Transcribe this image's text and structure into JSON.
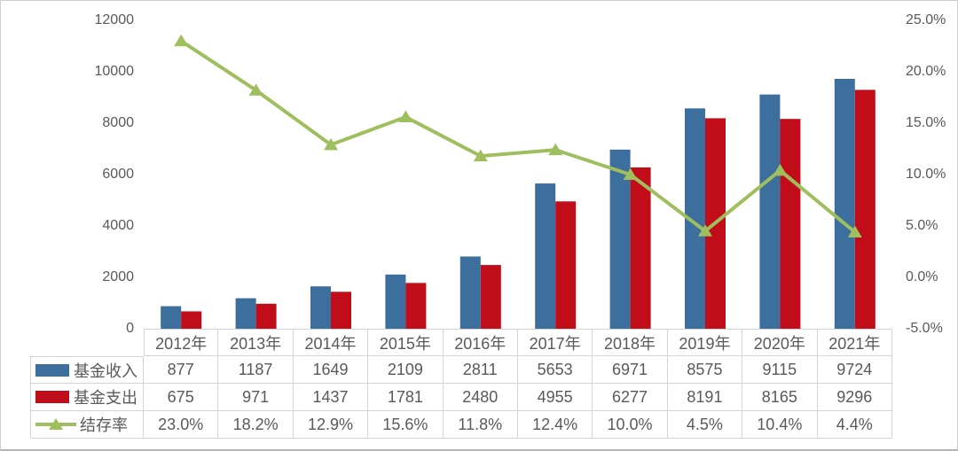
{
  "chart_data": {
    "type": "bar+line combo with data table",
    "categories": [
      "2012年",
      "2013年",
      "2014年",
      "2015年",
      "2016年",
      "2017年",
      "2018年",
      "2019年",
      "2020年",
      "2021年"
    ],
    "series": [
      {
        "name": "基金收入",
        "type": "bar",
        "axis": "left",
        "color": "#3C6E9E",
        "values": [
          877,
          1187,
          1649,
          2109,
          2811,
          5653,
          6971,
          8575,
          9115,
          9724
        ]
      },
      {
        "name": "基金支出",
        "type": "bar",
        "axis": "left",
        "color": "#C00D19",
        "values": [
          675,
          971,
          1437,
          1781,
          2480,
          4955,
          6277,
          8191,
          8165,
          9296
        ]
      },
      {
        "name": "结存率",
        "type": "line",
        "axis": "right",
        "color": "#9FBE5E",
        "marker": "triangle-up",
        "values": [
          23.0,
          18.2,
          12.9,
          15.6,
          11.8,
          12.4,
          10.0,
          4.5,
          10.4,
          4.4
        ],
        "labels": [
          "23.0%",
          "18.2%",
          "12.9%",
          "15.6%",
          "11.8%",
          "12.4%",
          "10.0%",
          "4.5%",
          "10.4%",
          "4.4%"
        ]
      }
    ],
    "left_axis": {
      "min": 0,
      "max": 12000,
      "step": 2000,
      "tick_values": [
        0,
        2000,
        4000,
        6000,
        8000,
        10000,
        12000
      ],
      "tick_labels": [
        "0",
        "2000",
        "4000",
        "6000",
        "8000",
        "10000",
        "12000"
      ]
    },
    "right_axis": {
      "min": -5,
      "max": 25,
      "step": 5,
      "tick_values": [
        -5,
        0,
        5,
        10,
        15,
        20,
        25
      ],
      "tick_labels": [
        "-5.0%",
        "0.0%",
        "5.0%",
        "10.0%",
        "15.0%",
        "20.0%",
        "25.0%"
      ]
    },
    "title": "",
    "grid": false,
    "legend_position": "data-table-left-column",
    "plot_background": "#FFFFFF"
  },
  "colors": {
    "text": "#595959",
    "table_border": "#D4D4D4",
    "frame_border": "#CFCFCF",
    "background": "#FFFFFF"
  }
}
